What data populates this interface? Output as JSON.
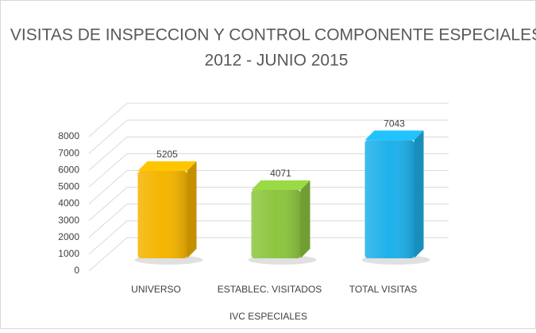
{
  "chart_data": {
    "type": "bar3d",
    "title": "VISITAS DE INSPECCION Y CONTROL COMPONENTE ESPECIALES",
    "subtitle": "2012 - JUNIO 2015",
    "x_label": "IVC ESPECIALES",
    "categories": [
      "UNIVERSO",
      "ESTABLEC. VISITADOS",
      "TOTAL VISITAS"
    ],
    "values": [
      5205,
      4071,
      7043
    ],
    "colors": [
      "#f5b400",
      "#8cc63f",
      "#1eb1ea"
    ],
    "ylim": [
      0,
      8000
    ],
    "yticks": [
      0,
      1000,
      2000,
      3000,
      4000,
      5000,
      6000,
      7000,
      8000
    ],
    "grid": true
  }
}
